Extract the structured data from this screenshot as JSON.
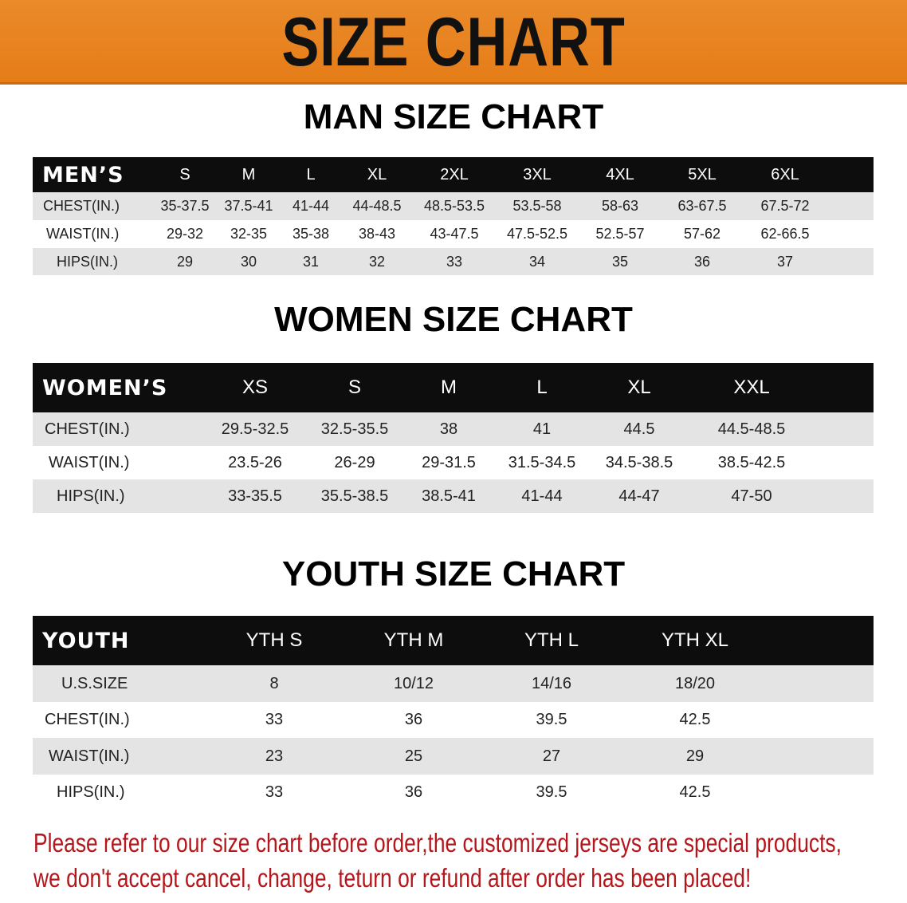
{
  "banner": {
    "title": "SIZE CHART",
    "color": "#E8821F"
  },
  "men": {
    "title": "MAN SIZE CHART",
    "header": [
      "MEN’S",
      "S",
      "M",
      "L",
      "XL",
      "2XL",
      "3XL",
      "4XL",
      "5XL",
      "6XL"
    ],
    "rows": [
      [
        "CHEST(IN.)",
        "35-37.5",
        "37.5-41",
        "41-44",
        "44-48.5",
        "48.5-53.5",
        "53.5-58",
        "58-63",
        "63-67.5",
        "67.5-72"
      ],
      [
        "WAIST(IN.)",
        "29-32",
        "32-35",
        "35-38",
        "38-43",
        "43-47.5",
        "47.5-52.5",
        "52.5-57",
        "57-62",
        "62-66.5"
      ],
      [
        "HIPS(IN.)",
        "29",
        "30",
        "31",
        "32",
        "33",
        "34",
        "35",
        "36",
        "37"
      ]
    ]
  },
  "women": {
    "title": "WOMEN SIZE CHART",
    "header": [
      "WOMEN’S",
      "XS",
      "S",
      "M",
      "L",
      "XL",
      "XXL"
    ],
    "rows": [
      [
        "CHEST(IN.)",
        "29.5-32.5",
        "32.5-35.5",
        "38",
        "41",
        "44.5",
        "44.5-48.5"
      ],
      [
        "WAIST(IN.)",
        "23.5-26",
        "26-29",
        "29-31.5",
        "31.5-34.5",
        "34.5-38.5",
        "38.5-42.5"
      ],
      [
        "HIPS(IN.)",
        "33-35.5",
        "35.5-38.5",
        "38.5-41",
        "41-44",
        "44-47",
        "47-50"
      ]
    ]
  },
  "youth": {
    "title": "YOUTH SIZE CHART",
    "header": [
      "YOUTH",
      "YTH S",
      "YTH M",
      "YTH L",
      "YTH XL"
    ],
    "rows": [
      [
        "U.S.SIZE",
        "8",
        "10/12",
        "14/16",
        "18/20"
      ],
      [
        "CHEST(IN.)",
        "33",
        "36",
        "39.5",
        "42.5"
      ],
      [
        "WAIST(IN.)",
        "23",
        "25",
        "27",
        "29"
      ],
      [
        "HIPS(IN.)",
        "33",
        "36",
        "39.5",
        "42.5"
      ]
    ]
  },
  "notice": {
    "line1": "Please refer to our size chart before order,the customized jerseys are special products,",
    "line2": "we don't accept cancel, change, teturn or refund after order has been placed!",
    "color": "#B3161B"
  }
}
